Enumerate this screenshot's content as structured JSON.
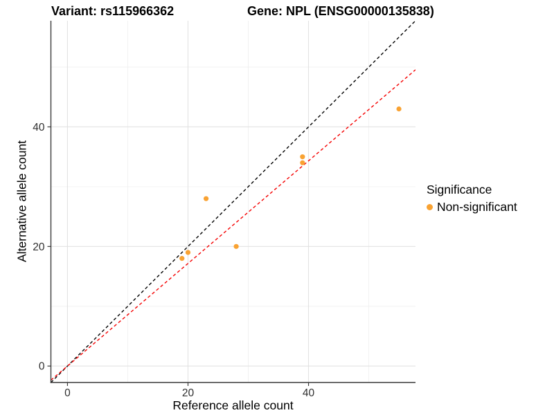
{
  "title": {
    "variant": "Variant: rs115966362",
    "gene": "Gene: NPL (ENSG00000135838)"
  },
  "axes": {
    "x": {
      "label": "Reference allele count",
      "tick_labels": [
        "0",
        "20",
        "40"
      ]
    },
    "y": {
      "label": "Alternative allele count",
      "tick_labels": [
        "0",
        "20",
        "40"
      ]
    }
  },
  "legend": {
    "title": "Significance",
    "items": [
      {
        "label": "Non-significant",
        "color": "#F9A232"
      }
    ]
  },
  "chart_data": {
    "type": "scatter",
    "title": "Variant: rs115966362 | Gene: NPL (ENSG00000135838)",
    "xlabel": "Reference allele count",
    "ylabel": "Alternative allele count",
    "xlim": [
      -2.75,
      57.75
    ],
    "ylim": [
      -2.75,
      57.75
    ],
    "x_ticks": [
      0,
      20,
      40
    ],
    "y_ticks": [
      0,
      20,
      40
    ],
    "grid": {
      "major": [
        0,
        20,
        40
      ],
      "minor": [
        10,
        30,
        50
      ],
      "visible": true
    },
    "series": [
      {
        "name": "Non-significant",
        "color": "#F9A232",
        "points": [
          [
            19,
            18
          ],
          [
            20,
            19
          ],
          [
            23,
            28
          ],
          [
            28,
            20
          ],
          [
            39,
            34
          ],
          [
            39,
            35
          ],
          [
            55,
            43
          ]
        ]
      }
    ],
    "lines": [
      {
        "name": "identity",
        "slope": 1.0,
        "intercept": 0,
        "color": "#000000",
        "style": "dashed"
      },
      {
        "name": "fit",
        "slope": 0.858,
        "intercept": 0,
        "color": "#F50000",
        "style": "dashed"
      }
    ],
    "legend_position": "right"
  }
}
